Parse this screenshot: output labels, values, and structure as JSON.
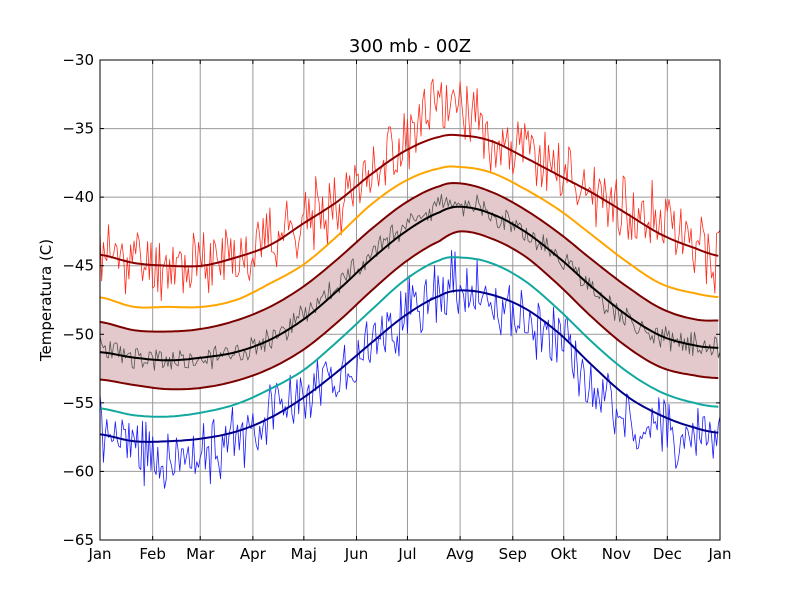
{
  "chart_data": {
    "type": "line",
    "title": "300 mb - 00Z",
    "xlabel": "",
    "ylabel": "Temperatura (C)",
    "ylim": [
      -65,
      -30
    ],
    "xlim": [
      0,
      365
    ],
    "grid": true,
    "x_ticks": [
      {
        "x": 0,
        "label": "Jan"
      },
      {
        "x": 31,
        "label": "Feb"
      },
      {
        "x": 59,
        "label": "Mar"
      },
      {
        "x": 90,
        "label": "Apr"
      },
      {
        "x": 120,
        "label": "Maj"
      },
      {
        "x": 151,
        "label": "Jun"
      },
      {
        "x": 181,
        "label": "Jul"
      },
      {
        "x": 212,
        "label": "Avg"
      },
      {
        "x": 243,
        "label": "Sep"
      },
      {
        "x": 273,
        "label": "Okt"
      },
      {
        "x": 304,
        "label": "Nov"
      },
      {
        "x": 334,
        "label": "Dec"
      },
      {
        "x": 365,
        "label": "Jan"
      }
    ],
    "y_ticks": [
      -30,
      -35,
      -40,
      -45,
      -50,
      -55,
      -60,
      -65
    ],
    "y_tick_labels": [
      "−30",
      "−35",
      "−40",
      "−45",
      "−50",
      "−55",
      "−60",
      "−65"
    ],
    "band": {
      "fill": "#e3c9cb",
      "lower_ref": "lower-std",
      "upper_ref": "upper-std"
    },
    "series": [
      {
        "id": "max-record",
        "kind": "noisy",
        "color": "#ff2a1a",
        "width": 0.8,
        "x": [
          0,
          20,
          40,
          60,
          80,
          100,
          120,
          140,
          160,
          180,
          200,
          212,
          230,
          250,
          270,
          290,
          310,
          330,
          350,
          365
        ],
        "y": [
          -44.0,
          -44.6,
          -45.0,
          -44.8,
          -44.2,
          -42.9,
          -41.8,
          -40.2,
          -38.0,
          -35.9,
          -33.6,
          -33.0,
          -35.6,
          -36.8,
          -38.0,
          -39.6,
          -40.8,
          -41.6,
          -43.5,
          -44.3
        ],
        "amp": 2.2,
        "seed": 11
      },
      {
        "id": "max-line",
        "kind": "smooth",
        "color": "#8b0000",
        "width": 2,
        "x": [
          0,
          20,
          40,
          60,
          80,
          100,
          120,
          140,
          160,
          180,
          200,
          212,
          230,
          250,
          270,
          290,
          310,
          330,
          350,
          365
        ],
        "y": [
          -44.2,
          -44.8,
          -45.0,
          -45.0,
          -44.4,
          -43.5,
          -41.9,
          -40.3,
          -38.3,
          -36.6,
          -35.6,
          -35.5,
          -35.9,
          -37.1,
          -38.4,
          -39.7,
          -41.2,
          -42.7,
          -43.7,
          -44.3
        ]
      },
      {
        "id": "orange",
        "kind": "smooth",
        "color": "#ffa500",
        "width": 2,
        "x": [
          0,
          20,
          40,
          60,
          80,
          100,
          120,
          140,
          160,
          180,
          200,
          212,
          230,
          250,
          270,
          290,
          310,
          330,
          350,
          365
        ],
        "y": [
          -47.3,
          -48.0,
          -48.0,
          -48.0,
          -47.5,
          -46.3,
          -44.9,
          -42.8,
          -40.5,
          -38.8,
          -37.9,
          -37.8,
          -38.2,
          -39.4,
          -40.9,
          -42.8,
          -44.7,
          -46.3,
          -47.0,
          -47.3
        ]
      },
      {
        "id": "upper-std",
        "kind": "smooth",
        "color": "#7b0000",
        "width": 2,
        "x": [
          0,
          20,
          40,
          60,
          80,
          100,
          120,
          140,
          160,
          180,
          200,
          212,
          230,
          250,
          270,
          290,
          310,
          330,
          350,
          365
        ],
        "y": [
          -49.1,
          -49.7,
          -49.8,
          -49.6,
          -49.0,
          -48.0,
          -46.5,
          -44.5,
          -42.3,
          -40.4,
          -39.2,
          -39.0,
          -39.6,
          -40.9,
          -42.6,
          -44.6,
          -46.5,
          -48.1,
          -48.9,
          -49.0
        ]
      },
      {
        "id": "daily-mean",
        "kind": "noisy",
        "color": "#555555",
        "width": 0.8,
        "x": [
          0,
          20,
          40,
          60,
          80,
          100,
          120,
          140,
          160,
          180,
          200,
          212,
          230,
          250,
          270,
          290,
          310,
          330,
          350,
          365
        ],
        "y": [
          -51.0,
          -51.7,
          -52.0,
          -51.8,
          -51.1,
          -50.4,
          -48.6,
          -46.4,
          -44.0,
          -42.0,
          -40.6,
          -40.4,
          -41.1,
          -42.5,
          -44.3,
          -46.8,
          -48.9,
          -50.3,
          -50.6,
          -51.0
        ],
        "amp": 0.8,
        "seed": 23
      },
      {
        "id": "mean",
        "kind": "smooth",
        "color": "#000000",
        "width": 2,
        "x": [
          0,
          20,
          40,
          60,
          80,
          100,
          120,
          140,
          160,
          180,
          200,
          212,
          230,
          250,
          270,
          290,
          310,
          330,
          350,
          365
        ],
        "y": [
          -51.3,
          -51.7,
          -51.9,
          -51.7,
          -51.3,
          -50.4,
          -48.9,
          -46.8,
          -44.5,
          -42.5,
          -41.1,
          -40.7,
          -41.2,
          -42.5,
          -44.4,
          -46.6,
          -48.6,
          -50.1,
          -50.8,
          -51.0
        ]
      },
      {
        "id": "lower-std",
        "kind": "smooth",
        "color": "#7b0000",
        "width": 2,
        "x": [
          0,
          20,
          40,
          60,
          80,
          100,
          120,
          140,
          160,
          180,
          200,
          212,
          230,
          250,
          270,
          290,
          310,
          330,
          350,
          365
        ],
        "y": [
          -53.3,
          -53.7,
          -54.0,
          -53.9,
          -53.4,
          -52.5,
          -51.1,
          -49.1,
          -46.8,
          -44.7,
          -43.2,
          -42.5,
          -43.0,
          -44.3,
          -46.4,
          -48.8,
          -50.9,
          -52.4,
          -53.0,
          -53.2
        ]
      },
      {
        "id": "teal",
        "kind": "smooth",
        "color": "#12a8a0",
        "width": 2,
        "x": [
          0,
          20,
          40,
          60,
          80,
          100,
          120,
          140,
          160,
          180,
          200,
          212,
          230,
          250,
          270,
          290,
          310,
          330,
          350,
          365
        ],
        "y": [
          -55.4,
          -55.9,
          -56.0,
          -55.7,
          -55.1,
          -54.0,
          -52.6,
          -50.5,
          -48.2,
          -46.0,
          -44.6,
          -44.4,
          -44.8,
          -46.1,
          -48.2,
          -50.6,
          -52.7,
          -54.2,
          -55.0,
          -55.3
        ]
      },
      {
        "id": "min-line",
        "kind": "smooth",
        "color": "#00008b",
        "width": 2,
        "x": [
          0,
          20,
          40,
          60,
          80,
          100,
          120,
          140,
          160,
          180,
          200,
          212,
          230,
          250,
          270,
          290,
          310,
          330,
          350,
          365
        ],
        "y": [
          -57.3,
          -57.8,
          -57.8,
          -57.6,
          -57.1,
          -56.1,
          -54.6,
          -52.7,
          -50.6,
          -48.6,
          -47.2,
          -46.8,
          -47.1,
          -48.1,
          -49.9,
          -52.3,
          -54.5,
          -55.9,
          -56.8,
          -57.2
        ]
      },
      {
        "id": "min-record",
        "kind": "noisy",
        "color": "#1a1aff",
        "width": 0.8,
        "x": [
          0,
          20,
          40,
          60,
          80,
          100,
          120,
          140,
          160,
          180,
          200,
          212,
          230,
          250,
          270,
          290,
          310,
          330,
          350,
          365
        ],
        "y": [
          -57.0,
          -58.2,
          -59.0,
          -58.4,
          -57.8,
          -55.6,
          -54.6,
          -52.6,
          -50.3,
          -48.6,
          -46.6,
          -46.4,
          -47.5,
          -49.0,
          -50.6,
          -53.8,
          -56.0,
          -57.0,
          -57.6,
          -57.3
        ],
        "amp": 2.1,
        "seed": 47
      }
    ]
  }
}
